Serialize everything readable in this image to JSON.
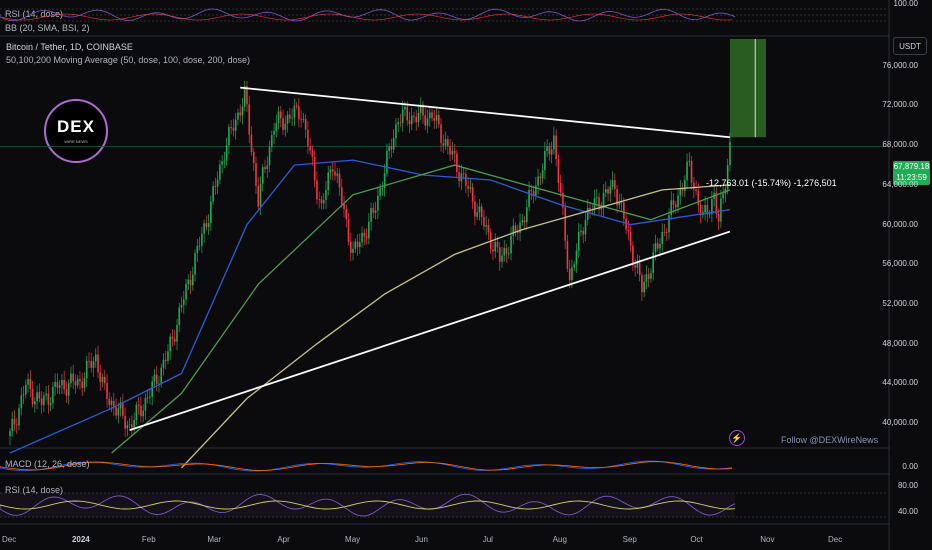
{
  "symbol_title": "Bitcoin / Tether, 1D, COINBASE",
  "ma_title": "50,100,200 Moving Average (50, dose, 100, dose, 200, dose)",
  "top_panes": {
    "rsi_label": "RSI (14, dose)",
    "bb_label": "BB (20, SMA, BSI, 2)",
    "axis_value": "100.00"
  },
  "currency_button": "USDT",
  "price_tag": {
    "price": "67,879.18",
    "countdown": "11:23:59"
  },
  "measure_text": "-12,763.01 (-15.74%) -1,276,501",
  "watermark": {
    "logo": "DEX",
    "logo_sub": "WIRE NEWS",
    "follow": "Follow @DEXWireNews"
  },
  "macd": {
    "label": "MACD (12, 26, dose)",
    "axis_value": "0.00"
  },
  "rsi_bottom": {
    "label": "RSI (14, dose)",
    "axis_values": [
      "80.00",
      "40.00"
    ]
  },
  "colors": {
    "up": "#22ab55",
    "down": "#f23645",
    "ma50": "#2f5bd3",
    "ma100": "#4f9a4f",
    "ma200": "#c9c08a",
    "trend": "#ffffff",
    "target_box": "#2e6b25"
  },
  "chart_data": {
    "type": "candlestick",
    "title": "Bitcoin / Tether, 1D, COINBASE",
    "y_axis_ticks": [
      76000,
      72000,
      68000,
      64000,
      60000,
      56000,
      52000,
      48000,
      44000,
      40000
    ],
    "y_axis_labels": [
      "76,000.00",
      "72,000.00",
      "68,000.00",
      "64,000.00",
      "60,000.00",
      "56,000.00",
      "52,000.00",
      "48,000.00",
      "44,000.00",
      "40,000.00"
    ],
    "ylim": [
      37500,
      79000
    ],
    "x_axis_labels": [
      "Dec",
      "2024",
      "Feb",
      "Mar",
      "Apr",
      "May",
      "Jun",
      "Jul",
      "Aug",
      "Sep",
      "Oct",
      "Nov",
      "Dec"
    ],
    "x_axis_dates": [
      "2023-12-01",
      "2024-01-01",
      "2024-02-01",
      "2024-03-01",
      "2024-04-01",
      "2024-05-01",
      "2024-06-01",
      "2024-07-01",
      "2024-08-01",
      "2024-09-01",
      "2024-10-01",
      "2024-11-01",
      "2024-12-01"
    ],
    "price_path": [
      [
        "2023-12-01",
        38700
      ],
      [
        "2023-12-08",
        43800
      ],
      [
        "2023-12-15",
        42000
      ],
      [
        "2023-12-22",
        43700
      ],
      [
        "2024-01-01",
        44200
      ],
      [
        "2024-01-08",
        46700
      ],
      [
        "2024-01-12",
        43000
      ],
      [
        "2024-01-18",
        41200
      ],
      [
        "2024-01-23",
        39700
      ],
      [
        "2024-02-01",
        43000
      ],
      [
        "2024-02-09",
        47000
      ],
      [
        "2024-02-15",
        51800
      ],
      [
        "2024-02-28",
        62000
      ],
      [
        "2024-03-05",
        67500
      ],
      [
        "2024-03-14",
        73000
      ],
      [
        "2024-03-20",
        62500
      ],
      [
        "2024-03-27",
        70000
      ],
      [
        "2024-04-08",
        71500
      ],
      [
        "2024-04-17",
        61500
      ],
      [
        "2024-04-22",
        66500
      ],
      [
        "2024-05-01",
        57000
      ],
      [
        "2024-05-10",
        61000
      ],
      [
        "2024-05-21",
        70800
      ],
      [
        "2024-06-05",
        71000
      ],
      [
        "2024-06-18",
        65000
      ],
      [
        "2024-07-05",
        56500
      ],
      [
        "2024-07-14",
        60000
      ],
      [
        "2024-07-29",
        68800
      ],
      [
        "2024-08-05",
        54500
      ],
      [
        "2024-08-12",
        61000
      ],
      [
        "2024-08-25",
        64000
      ],
      [
        "2024-09-06",
        53500
      ],
      [
        "2024-09-15",
        59000
      ],
      [
        "2024-09-27",
        65800
      ],
      [
        "2024-10-03",
        60500
      ],
      [
        "2024-10-08",
        63000
      ],
      [
        "2024-10-10",
        60000
      ],
      [
        "2024-10-15",
        67879
      ]
    ],
    "moving_averages": [
      {
        "name": "MA 50",
        "values": [
          [
            "2023-12-01",
            37000
          ],
          [
            "2024-01-15",
            41500
          ],
          [
            "2024-02-15",
            45000
          ],
          [
            "2024-03-15",
            60000
          ],
          [
            "2024-04-05",
            66000
          ],
          [
            "2024-05-01",
            66500
          ],
          [
            "2024-06-01",
            65000
          ],
          [
            "2024-07-01",
            64500
          ],
          [
            "2024-08-01",
            62000
          ],
          [
            "2024-09-01",
            60000
          ],
          [
            "2024-10-15",
            61500
          ]
        ]
      },
      {
        "name": "MA 100",
        "values": [
          [
            "2024-01-15",
            37000
          ],
          [
            "2024-02-15",
            43000
          ],
          [
            "2024-03-20",
            54000
          ],
          [
            "2024-05-01",
            63000
          ],
          [
            "2024-06-15",
            66000
          ],
          [
            "2024-08-01",
            63000
          ],
          [
            "2024-09-10",
            60500
          ],
          [
            "2024-10-15",
            63500
          ]
        ]
      },
      {
        "name": "MA 200",
        "values": [
          [
            "2024-02-15",
            35500
          ],
          [
            "2024-03-15",
            42500
          ],
          [
            "2024-04-15",
            48000
          ],
          [
            "2024-05-15",
            53000
          ],
          [
            "2024-06-15",
            57000
          ],
          [
            "2024-07-15",
            59500
          ],
          [
            "2024-08-15",
            61500
          ],
          [
            "2024-09-15",
            63500
          ],
          [
            "2024-10-15",
            64000
          ]
        ]
      }
    ],
    "trendlines": [
      {
        "from": [
          "2024-03-12",
          73800
        ],
        "to": [
          "2024-10-15",
          68800
        ]
      },
      {
        "from": [
          "2024-01-23",
          39300
        ],
        "to": [
          "2024-10-15",
          59300
        ]
      }
    ],
    "measure_box": {
      "from_date": "2024-10-15",
      "to_date": "2024-10-31",
      "low": 68800,
      "high": 78700
    },
    "horizontal_line": 67879
  }
}
